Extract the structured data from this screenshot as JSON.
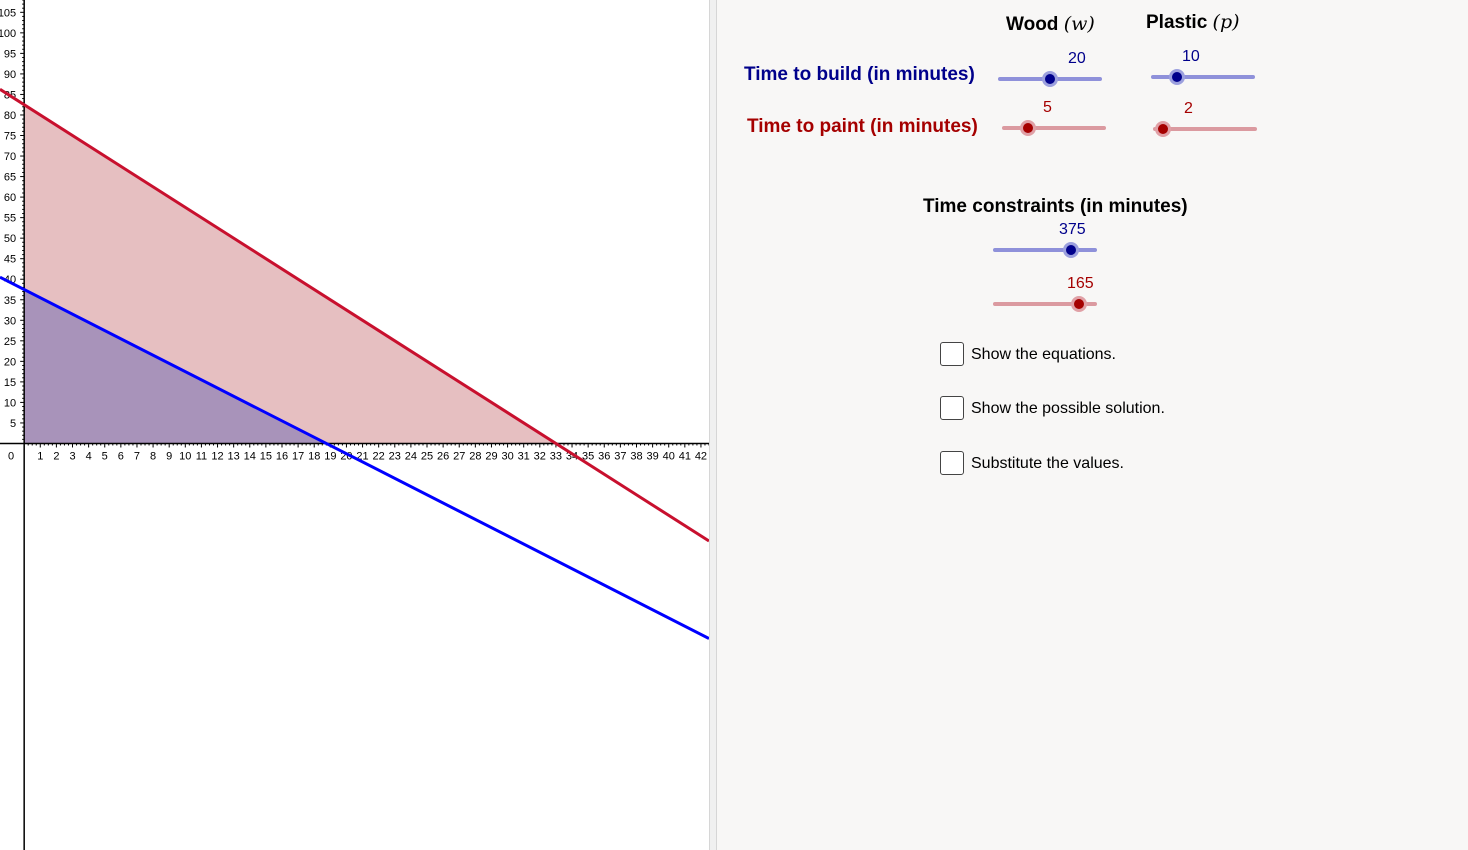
{
  "headers": {
    "wood": {
      "name": "Wood",
      "var": "(w)"
    },
    "plastic": {
      "name": "Plastic",
      "var": "(p)"
    },
    "constraints": "Time constraints (in minutes)"
  },
  "build": {
    "label": "Time to build (in minutes)",
    "wood": {
      "value": "20",
      "min": 0,
      "max": 40,
      "num": 20
    },
    "plastic": {
      "value": "10",
      "min": 0,
      "max": 40,
      "num": 10
    }
  },
  "paint": {
    "label": "Time to paint (in minutes)",
    "wood": {
      "value": "5",
      "min": 0,
      "max": 20,
      "num": 5
    },
    "plastic": {
      "value": "2",
      "min": 0,
      "max": 20,
      "num": 2
    }
  },
  "constraint_build": {
    "value": "375",
    "min": 0,
    "max": 500,
    "num": 375
  },
  "constraint_paint": {
    "value": "165",
    "min": 0,
    "max": 200,
    "num": 165
  },
  "checkboxes": [
    {
      "label": "Show the equations.",
      "checked": false
    },
    {
      "label": "Show the possible solution.",
      "checked": false
    },
    {
      "label": "Substitute the values.",
      "checked": false
    }
  ],
  "colors": {
    "build": "#0000ff",
    "paint": "#c8102e",
    "build_text": "#00008b",
    "paint_text": "#a50000",
    "paint_fill": "#e6bfc1",
    "overlap_fill": "#a893ba"
  },
  "chart_data": {
    "type": "line",
    "title": "",
    "xlabel": "",
    "ylabel": "",
    "xlim": [
      -1.5,
      42.5
    ],
    "ylim": [
      -99,
      108
    ],
    "x_ticks": [
      1,
      2,
      3,
      4,
      5,
      6,
      7,
      8,
      9,
      10,
      11,
      12,
      13,
      14,
      15,
      16,
      17,
      18,
      19,
      20,
      21,
      22,
      23,
      24,
      25,
      26,
      27,
      28,
      29,
      30,
      31,
      32,
      33,
      34,
      35,
      36,
      37,
      38,
      39,
      40,
      41,
      42
    ],
    "y_ticks": [
      5,
      10,
      15,
      20,
      25,
      30,
      35,
      40,
      45,
      50,
      55,
      60,
      65,
      70,
      75,
      80,
      85,
      90,
      95,
      100,
      105
    ],
    "origin_label": "0",
    "series": [
      {
        "key": "build",
        "a": 10,
        "b": 20,
        "c": 375
      },
      {
        "key": "paint",
        "a": 2,
        "b": 5,
        "c": 165
      }
    ]
  }
}
